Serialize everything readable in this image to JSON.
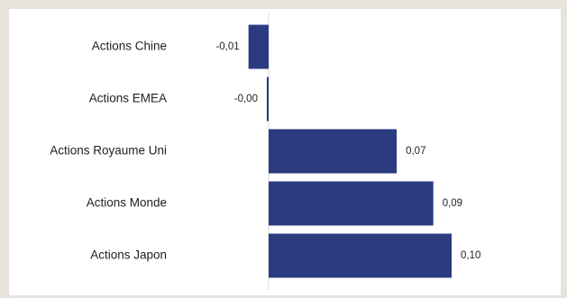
{
  "colors": {
    "background": "#e8e3dd",
    "plot_background": "#ffffff",
    "bar": "#2c3b80",
    "axis": "#d9d9d9",
    "text": "#1f1f1f"
  },
  "chart_data": {
    "type": "bar",
    "orientation": "horizontal",
    "title": "",
    "xlabel": "",
    "ylabel": "",
    "categories": [
      "Actions Chine",
      "Actions EMEA",
      "Actions Royaume Uni",
      "Actions Monde",
      "Actions Japon"
    ],
    "values": [
      -0.011,
      -0.001,
      0.07,
      0.09,
      0.1
    ],
    "value_labels": [
      "-0,01",
      "-0,00",
      "0,07",
      "0,09",
      "0,10"
    ],
    "xlim": [
      -0.011,
      0.1
    ],
    "grid": false,
    "legend": "none"
  }
}
